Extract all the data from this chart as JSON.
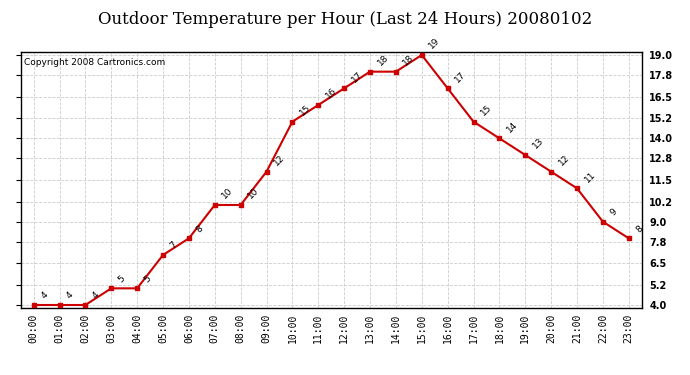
{
  "title": "Outdoor Temperature per Hour (Last 24 Hours) 20080102",
  "copyright": "Copyright 2008 Cartronics.com",
  "hours": [
    "00:00",
    "01:00",
    "02:00",
    "03:00",
    "04:00",
    "05:00",
    "06:00",
    "07:00",
    "08:00",
    "09:00",
    "10:00",
    "11:00",
    "12:00",
    "13:00",
    "14:00",
    "15:00",
    "16:00",
    "17:00",
    "18:00",
    "19:00",
    "20:00",
    "21:00",
    "22:00",
    "23:00"
  ],
  "temps": [
    4,
    4,
    4,
    5,
    5,
    7,
    8,
    10,
    10,
    12,
    15,
    16,
    17,
    18,
    18,
    19,
    17,
    15,
    14,
    13,
    12,
    11,
    9,
    8
  ],
  "line_color": "#cc0000",
  "marker_color": "#cc0000",
  "fig_bg_color": "#ffffff",
  "plot_bg_color": "#ffffff",
  "grid_color": "#cccccc",
  "title_bg_color": "#ffffff",
  "ylim_min": 4.0,
  "ylim_max": 19.0,
  "yticks": [
    4.0,
    5.2,
    6.5,
    7.8,
    9.0,
    10.2,
    11.5,
    12.8,
    14.0,
    15.2,
    16.5,
    17.8,
    19.0
  ],
  "title_fontsize": 12,
  "label_fontsize": 7,
  "copyright_fontsize": 6.5
}
